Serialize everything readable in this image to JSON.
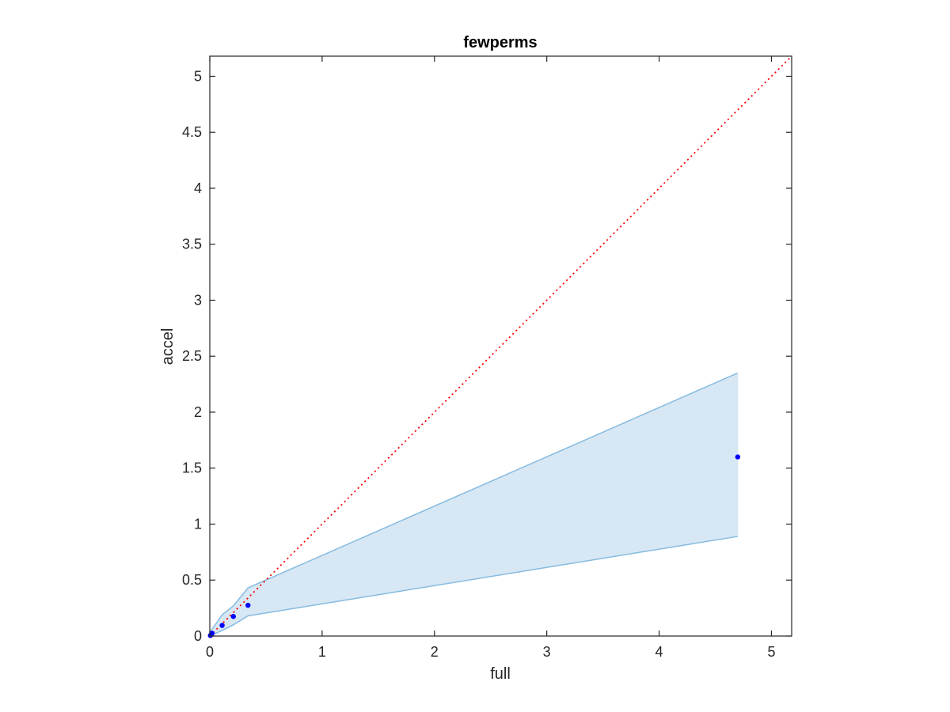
{
  "chart_data": {
    "type": "scatter",
    "title": "fewperms",
    "xlabel": "full",
    "ylabel": "accel",
    "xlim": [
      0,
      5.18
    ],
    "ylim": [
      0,
      5.18
    ],
    "xticks": [
      0,
      1,
      2,
      3,
      4,
      5
    ],
    "yticks": [
      0,
      0.5,
      1,
      1.5,
      2,
      2.5,
      3,
      3.5,
      4,
      4.5,
      5
    ],
    "grid": false,
    "legend": "none",
    "series": [
      {
        "kind": "scatter",
        "color": "#0000ff",
        "points": [
          {
            "x": 0.005,
            "y": 0.005
          },
          {
            "x": 0.01,
            "y": 0.01
          },
          {
            "x": 0.02,
            "y": 0.025
          },
          {
            "x": 0.11,
            "y": 0.095
          },
          {
            "x": 0.21,
            "y": 0.175
          },
          {
            "x": 0.34,
            "y": 0.275
          },
          {
            "x": 4.7,
            "y": 1.6
          }
        ]
      },
      {
        "kind": "band",
        "fill": "#d7e7f4",
        "stroke": "#86bbe0",
        "points": [
          {
            "x": 0.0,
            "lower": 0.0,
            "upper": 0.03
          },
          {
            "x": 0.02,
            "lower": 0.01,
            "upper": 0.06
          },
          {
            "x": 0.11,
            "lower": 0.05,
            "upper": 0.19
          },
          {
            "x": 0.21,
            "lower": 0.1,
            "upper": 0.27
          },
          {
            "x": 0.34,
            "lower": 0.18,
            "upper": 0.43
          },
          {
            "x": 4.7,
            "lower": 0.89,
            "upper": 2.35
          }
        ]
      },
      {
        "kind": "reference-line",
        "color": "#ff0000",
        "style": "dotted",
        "from": {
          "x": 0,
          "y": 0
        },
        "to": {
          "x": 5.18,
          "y": 5.18
        }
      }
    ]
  }
}
